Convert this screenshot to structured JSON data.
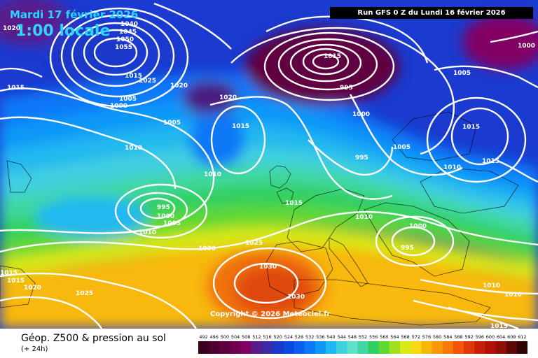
{
  "header": {
    "date": "Mardi 17 février 2026",
    "time": "1:00 locale",
    "run": "Run GFS 0 Z du Lundi 16 février 2026"
  },
  "footer": {
    "title": "Géop. Z500 & pression au sol",
    "subtitle": "(+ 24h)",
    "copyright": "Copyright © 2026 Meteociel.fr"
  },
  "legend": {
    "values": [
      "492",
      "496",
      "500",
      "504",
      "508",
      "512",
      "516",
      "520",
      "524",
      "528",
      "532",
      "536",
      "540",
      "544",
      "548",
      "552",
      "556",
      "560",
      "564",
      "568",
      "572",
      "576",
      "580",
      "584",
      "588",
      "592",
      "596",
      "600",
      "604",
      "608",
      "612"
    ],
    "colors": [
      "#3c0020",
      "#4e0030",
      "#600040",
      "#720050",
      "#820064",
      "#5a1a8a",
      "#3a2aa8",
      "#1a38c8",
      "#0a48e0",
      "#0a5ef0",
      "#0a78f8",
      "#1098f8",
      "#20b8f0",
      "#40d0e0",
      "#60e0c8",
      "#40d8a0",
      "#30d060",
      "#60d830",
      "#a0e020",
      "#d8e818",
      "#f8d810",
      "#f8b808",
      "#f89808",
      "#f87808",
      "#f05808",
      "#e03808",
      "#c82008",
      "#b01008",
      "#901008",
      "#600808",
      "#300404"
    ]
  },
  "isobars": {
    "labels": [
      "1020",
      "1040",
      "1045",
      "1050",
      "1055",
      "1015",
      "1025",
      "1020",
      "1015",
      "1000",
      "1005",
      "1020",
      "1015",
      "1010",
      "1010",
      "1005",
      "1000",
      "995",
      "1015",
      "1020",
      "1025",
      "995",
      "1000",
      "1005",
      "1010",
      "1030",
      "1030",
      "1025",
      "1015",
      "1020",
      "1015",
      "1000",
      "1005",
      "1015",
      "1015",
      "1010",
      "1015",
      "1005",
      "1010",
      "995",
      "995",
      "1000",
      "1010",
      "1010",
      "1015"
    ]
  }
}
